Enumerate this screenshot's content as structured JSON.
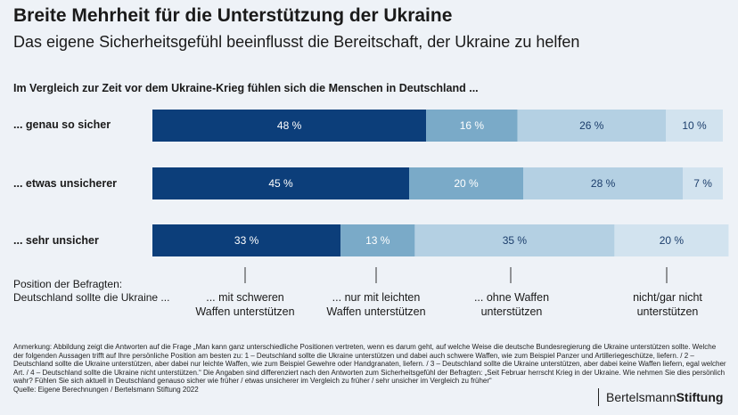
{
  "title": "Breite Mehrheit für die Unterstützung der Ukraine",
  "subtitle": "Das eigene Sicherheitsgefühl beeinflusst die Bereitschaft, der Ukraine zu helfen",
  "question": "Im Vergleich zur Zeit vor dem Ukraine-Krieg fühlen sich die Menschen in Deutschland ...",
  "position_label": "Position der Befragten:\nDeutschland sollte die Ukraine ...",
  "colors": [
    "#0c3e7a",
    "#7aaac8",
    "#b4d0e3",
    "#d2e3ef"
  ],
  "label_colors": [
    "#ffffff",
    "#ffffff",
    "#1b3d6b",
    "#1b3d6b"
  ],
  "chart_data": {
    "type": "bar",
    "orientation": "horizontal",
    "stacked": true,
    "categories": [
      "... genau so sicher",
      "... etwas unsicherer",
      "... sehr unsicher"
    ],
    "series": [
      {
        "name": "... mit schweren Waffen unterstützen",
        "values": [
          48,
          45,
          33
        ]
      },
      {
        "name": "... nur mit leichten Waffen unterstützen",
        "values": [
          16,
          20,
          13
        ]
      },
      {
        "name": "... ohne Waffen unterstützen",
        "values": [
          26,
          28,
          35
        ]
      },
      {
        "name": "nicht/gar nicht unterstützen",
        "values": [
          10,
          7,
          20
        ]
      }
    ],
    "value_labels": [
      [
        "48 %",
        "16 %",
        "26 %",
        "10 %"
      ],
      [
        "45 %",
        "20 %",
        "28 %",
        "7 %"
      ],
      [
        "33 %",
        "13 %",
        "35 %",
        "20 %"
      ]
    ],
    "xlim": [
      0,
      100
    ]
  },
  "note": "Anmerkung: Abbildung zeigt die Antworten auf die Frage „Man kann ganz unterschiedliche Positionen vertreten, wenn es darum geht, auf welche Weise die deutsche Bundesregierung die Ukraine unterstützen sollte. Welche der folgenden Aussagen trifft auf Ihre persönliche Position am besten zu: 1 – Deutschland sollte die Ukraine unterstützen und dabei auch schwere Waffen, wie zum Beispiel Panzer und Artilleriegeschütze, liefern. / 2 – Deutschland sollte die Ukraine unterstützen, aber dabei nur leichte Waffen, wie zum Beispiel Gewehre oder Handgranaten, liefern. / 3 – Deutschland sollte die Ukraine unterstützen, aber dabei keine Waffen liefern, egal welcher Art. / 4 – Deutschland sollte die Ukraine nicht unterstützen.“ Die Angaben sind differenziert nach den Antworten zum Sicherheitsgefühl der Befragten: „Seit Februar herrscht Krieg in der Ukraine. Wie nehmen Sie dies persönlich wahr? Fühlen Sie sich aktuell in Deutschland genauso sicher wie früher / etwas unsicherer im Vergleich zu früher / sehr unsicher im Vergleich zu früher“",
  "source": "Quelle: Eigene Berechnungen / Bertelsmann Stiftung 2022",
  "logo": {
    "part1": "Bertelsmann",
    "part2": "Stiftung"
  }
}
